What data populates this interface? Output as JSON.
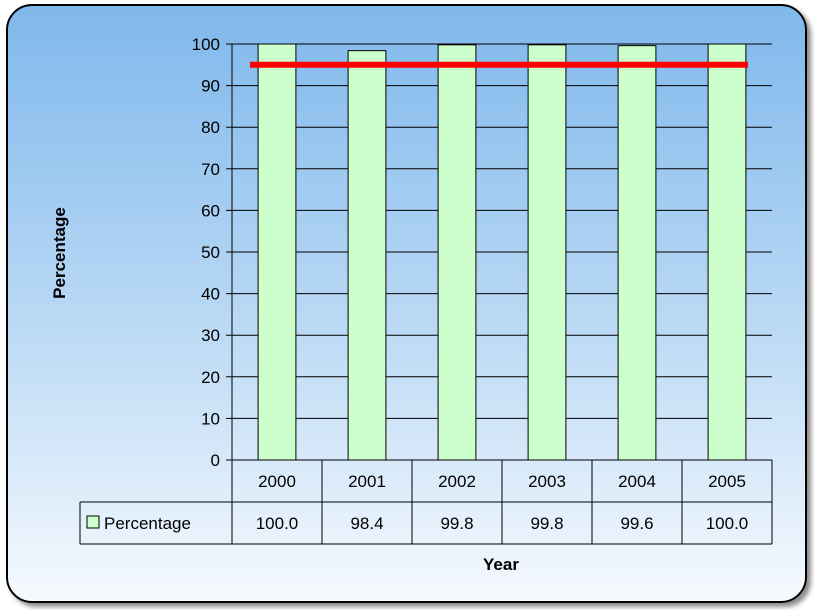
{
  "chart_data": {
    "type": "bar",
    "categories": [
      "2000",
      "2001",
      "2002",
      "2003",
      "2004",
      "2005"
    ],
    "series": [
      {
        "name": "Percentage",
        "values": [
          100.0,
          98.4,
          99.8,
          99.8,
          99.6,
          100.0
        ],
        "color": "#ccffcc"
      }
    ],
    "table_values": [
      "100.0",
      "98.4",
      "99.8",
      "99.8",
      "99.6",
      "100.0"
    ],
    "reference_line": {
      "value": 95,
      "color": "#ff0000"
    },
    "xlabel": "Year",
    "ylabel": "Percentage",
    "ylim": [
      0,
      100
    ],
    "yticks": [
      0,
      10,
      20,
      30,
      40,
      50,
      60,
      70,
      80,
      90,
      100
    ],
    "grid": true,
    "legend": "data-table-left"
  }
}
